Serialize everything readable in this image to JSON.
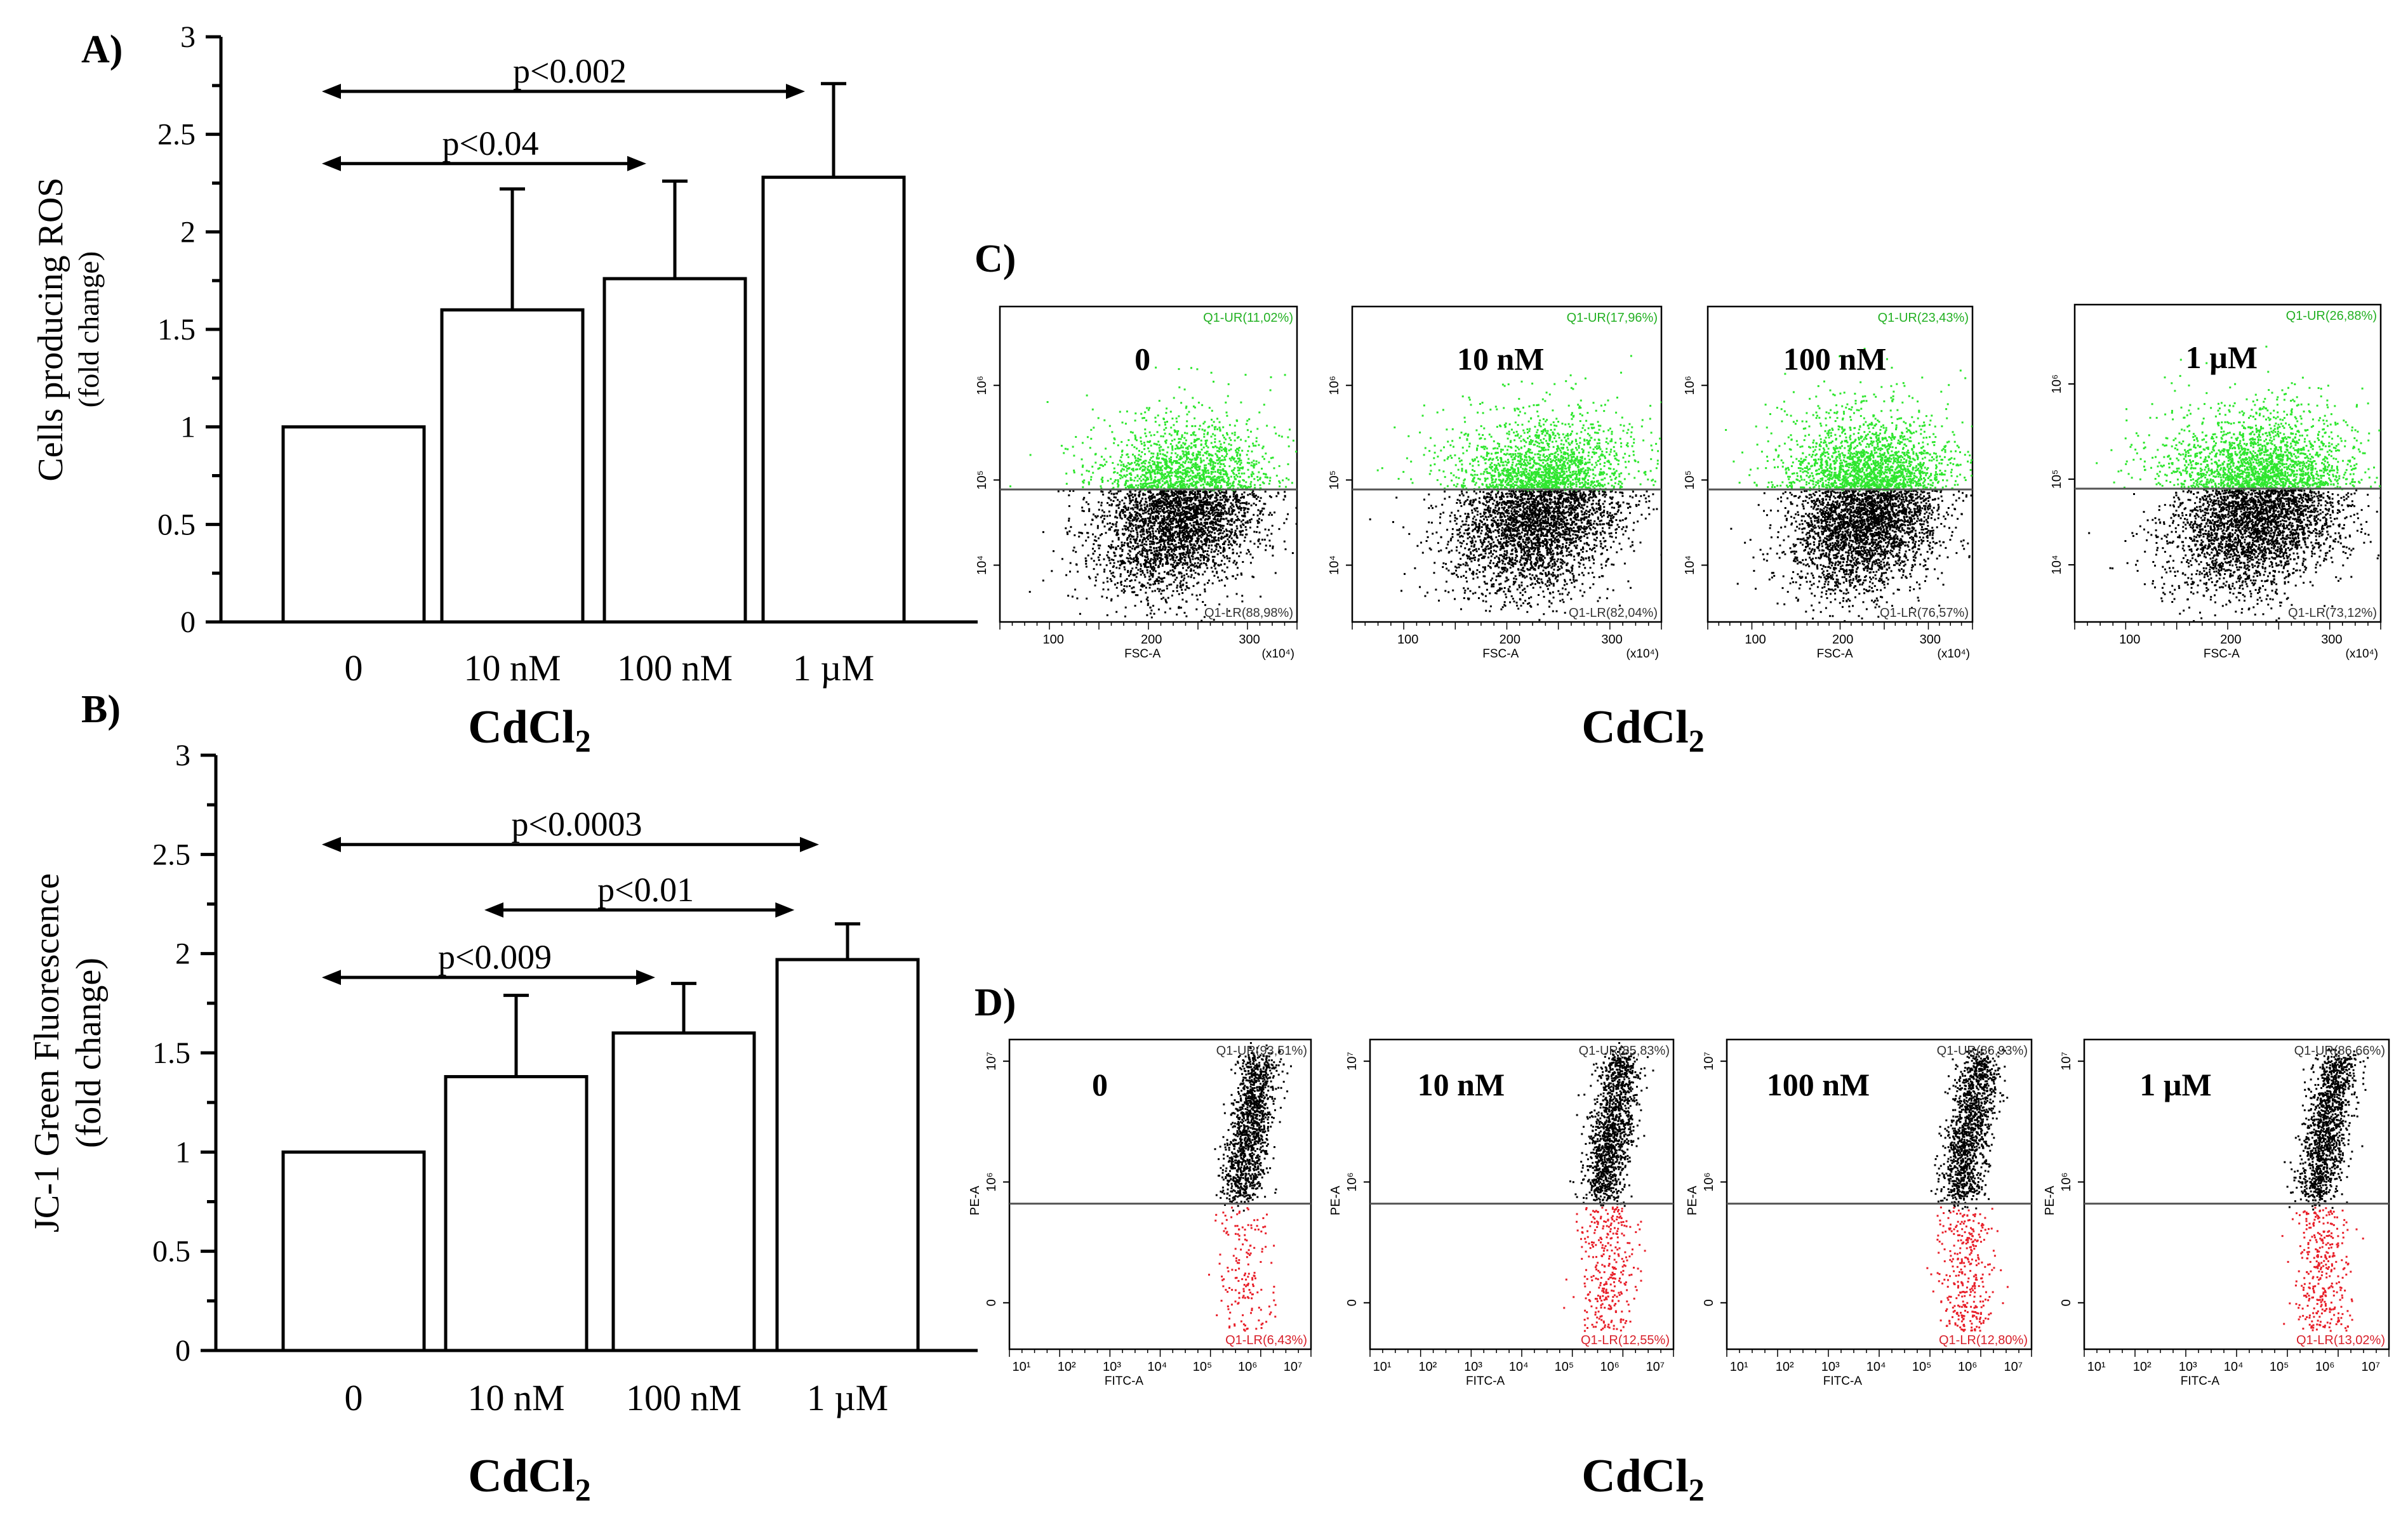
{
  "panel_labels": {
    "a": "A)",
    "b": "B)",
    "c": "C)",
    "d": "D)"
  },
  "common_xlabel": {
    "main": "CdCl",
    "sub": "2"
  },
  "bar_charts": [
    {
      "id": "a",
      "type": "bar",
      "ylabel": "Cells producing ROS",
      "ylabel_sub": "(fold change)",
      "categories": [
        "0",
        "10 nM",
        "100 nM",
        "1 µM"
      ],
      "values": [
        1.0,
        1.6,
        1.76,
        2.28
      ],
      "errors": [
        0,
        0.62,
        0.5,
        0.48
      ],
      "ylim": [
        0,
        3
      ],
      "yticks": [
        "0",
        "0.5",
        "1",
        "1.5",
        "2",
        "2.5",
        "3"
      ],
      "annotations": [
        {
          "label": "p<0.002",
          "from": 0,
          "to": 3,
          "y": 2.72
        },
        {
          "label": "p<0.04",
          "from": 0,
          "to": 2,
          "y": 2.35
        }
      ]
    },
    {
      "id": "b",
      "type": "bar",
      "ylabel": "JC-1 Green Fluorescence",
      "ylabel_sub": "(fold change)",
      "categories": [
        "0",
        "10 nM",
        "100 nM",
        "1 µM"
      ],
      "values": [
        1.0,
        1.38,
        1.6,
        1.97
      ],
      "errors": [
        0,
        0.41,
        0.25,
        0.18
      ],
      "ylim": [
        0,
        3
      ],
      "yticks": [
        "0",
        "0.5",
        "1",
        "1.5",
        "2",
        "2.5",
        "3"
      ],
      "annotations": [
        {
          "label": "p<0.0003",
          "from": 0,
          "to": 3,
          "y": 2.55
        },
        {
          "label": "p<0.01",
          "from": 1,
          "to": 2.85,
          "y": 2.22
        },
        {
          "label": "p<0.009",
          "from": 0,
          "to": 2,
          "y": 1.88
        }
      ]
    }
  ],
  "flow_c": {
    "y_ticks": [
      "10⁶",
      "10⁵",
      "10⁴"
    ],
    "x_ticks": [
      "100",
      "200",
      "300"
    ],
    "x_label": "FSC-A",
    "x_scale": "(x10⁴)",
    "colors": {
      "upper": "#2ee62e",
      "lower": "#000000"
    },
    "plots": [
      {
        "treatment": "0",
        "ur": "Q1-UR(11,02%)",
        "lr": "Q1-LR(88,98%)",
        "ur_fraction": 0.1102
      },
      {
        "treatment": "10 nM",
        "ur": "Q1-UR(17,96%)",
        "lr": "Q1-LR(82,04%)",
        "ur_fraction": 0.1796
      },
      {
        "treatment": "100 nM",
        "ur": "Q1-UR(23,43%)",
        "lr": "Q1-LR(76,57%)",
        "ur_fraction": 0.2343
      },
      {
        "treatment": "1 µM",
        "ur": "Q1-UR(26,88%)",
        "lr": "Q1-LR(73,12%)",
        "ur_fraction": 0.2688
      }
    ]
  },
  "flow_d": {
    "y_ticks": [
      "10⁷",
      "10⁶",
      "0"
    ],
    "y_label": "PE-A",
    "x_ticks": [
      "10¹",
      "10²",
      "10³",
      "10⁴",
      "10⁵",
      "10⁶",
      "10⁷"
    ],
    "x_label": "FITC-A",
    "colors": {
      "upper": "#000000",
      "lower": "#e8202a"
    },
    "plots": [
      {
        "treatment": "0",
        "ur": "Q1-UR(93,51%)",
        "lr": "Q1-LR(6,43%)",
        "lr_fraction": 0.0643
      },
      {
        "treatment": "10 nM",
        "ur": "Q1-UR(85,83%)",
        "lr": "Q1-LR(12,55%)",
        "lr_fraction": 0.1255
      },
      {
        "treatment": "100 nM",
        "ur": "Q1-UR(86,93%)",
        "lr": "Q1-LR(12,80%)",
        "lr_fraction": 0.128
      },
      {
        "treatment": "1 µM",
        "ur": "Q1-UR(86,66%)",
        "lr": "Q1-LR(13,02%)",
        "lr_fraction": 0.1302
      }
    ]
  }
}
